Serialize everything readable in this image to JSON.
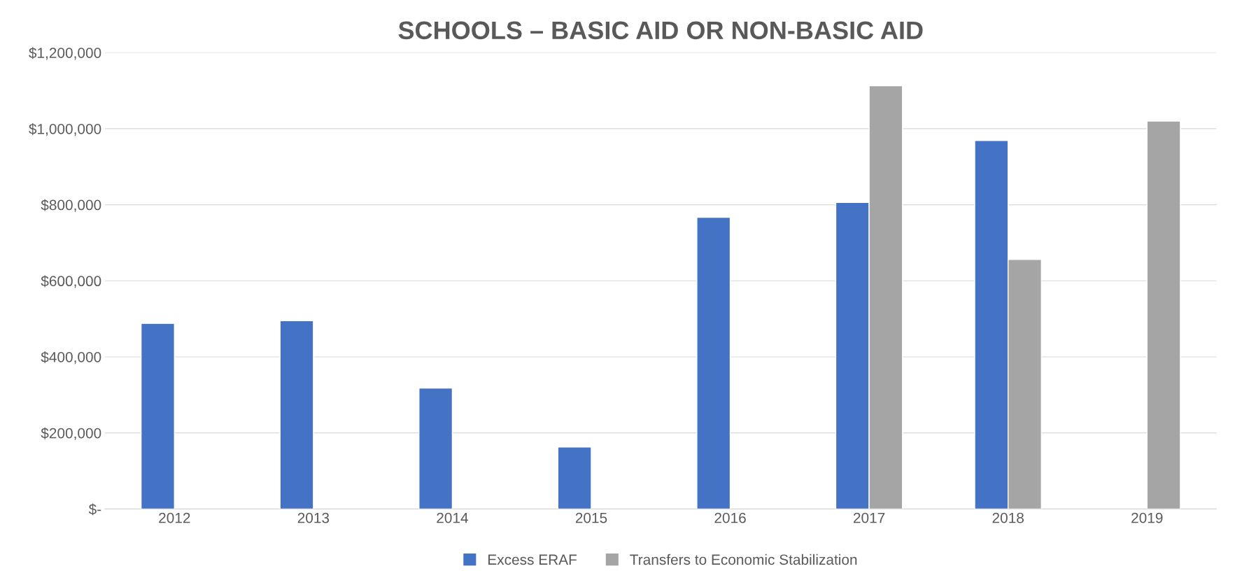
{
  "chart_data": {
    "type": "bar",
    "title": "SCHOOLS – BASIC AID OR NON-BASIC AID",
    "categories": [
      "2012",
      "2013",
      "2014",
      "2015",
      "2016",
      "2017",
      "2018",
      "2019"
    ],
    "series": [
      {
        "name": "Excess ERAF",
        "color": "#4472c4",
        "values": [
          488000,
          495000,
          318000,
          163000,
          767000,
          806000,
          969000,
          null
        ]
      },
      {
        "name": "Transfers to Economic Stabilization",
        "color": "#a5a5a5",
        "values": [
          null,
          null,
          null,
          null,
          null,
          1113000,
          656000,
          1020000
        ]
      }
    ],
    "ylim": [
      0,
      1200000
    ],
    "yticks": [
      {
        "value": 0,
        "label": "$-"
      },
      {
        "value": 200000,
        "label": "$200,000"
      },
      {
        "value": 400000,
        "label": "$400,000"
      },
      {
        "value": 600000,
        "label": "$600,000"
      },
      {
        "value": 800000,
        "label": "$800,000"
      },
      {
        "value": 1000000,
        "label": "$1,000,000"
      },
      {
        "value": 1200000,
        "label": "$1,200,000"
      }
    ],
    "grid": "y",
    "legend": "bottom"
  }
}
